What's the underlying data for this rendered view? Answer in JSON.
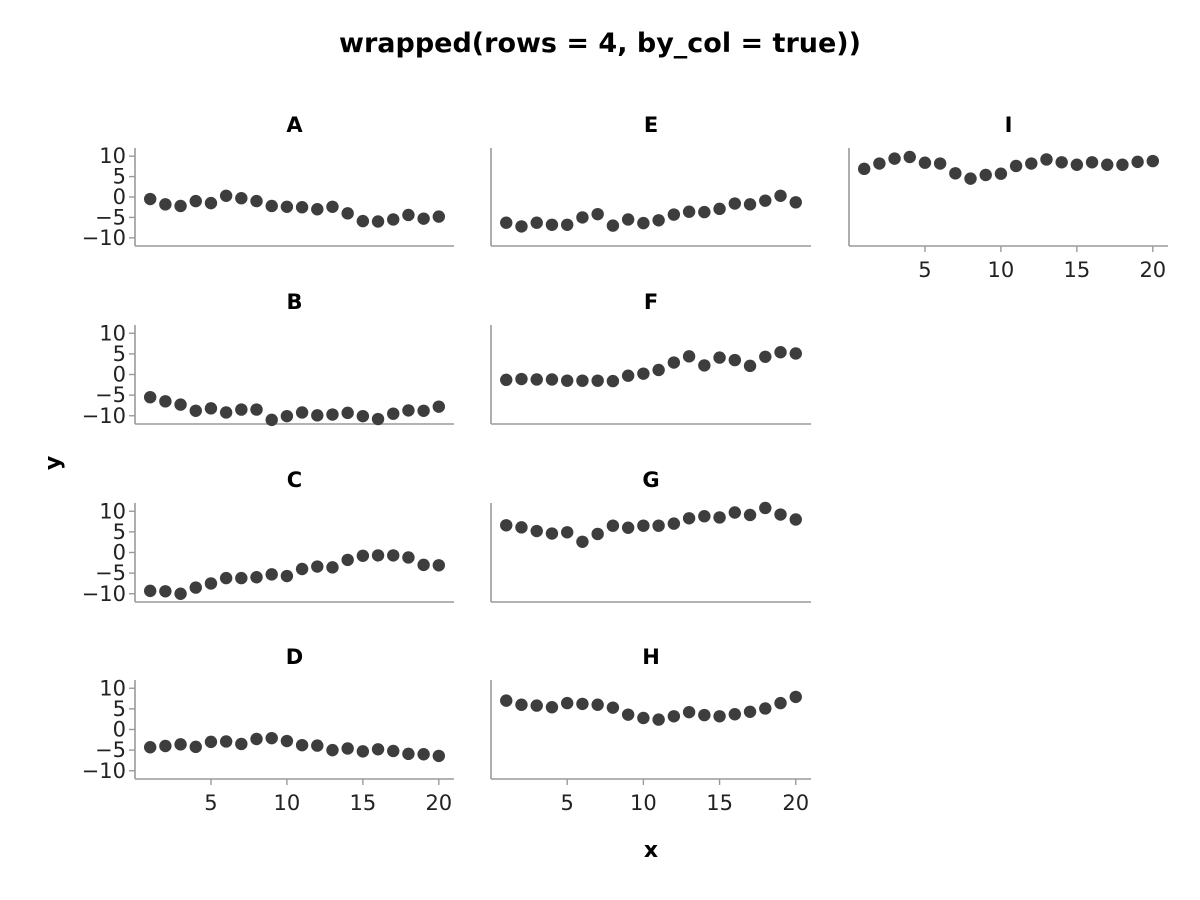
{
  "chart_data": {
    "type": "scatter",
    "title": "wrapped(rows = 4, by_col = true))",
    "xlabel": "x",
    "ylabel": "y",
    "xlim": [
      0,
      21
    ],
    "ylim": [
      -12,
      12
    ],
    "xticks": [
      "5",
      "10",
      "15",
      "20"
    ],
    "yticks": [
      "10",
      "5",
      "0",
      "−5",
      "−10"
    ],
    "marker_color": "#3d3d3d",
    "axis_color": "#9a9a9a",
    "x": [
      1,
      2,
      3,
      4,
      5,
      6,
      7,
      8,
      9,
      10,
      11,
      12,
      13,
      14,
      15,
      16,
      17,
      18,
      19,
      20
    ],
    "panels": [
      {
        "name": "A",
        "values": [
          -0.5,
          -1.8,
          -2.2,
          -1,
          -1.5,
          0.3,
          -0.3,
          -1,
          -2.2,
          -2.4,
          -2.5,
          -3,
          -2.4,
          -4,
          -5.9,
          -6,
          -5.5,
          -4.4,
          -5.3,
          -4.8
        ]
      },
      {
        "name": "B",
        "values": [
          -5.5,
          -6.5,
          -7.3,
          -8.8,
          -8.2,
          -9.2,
          -8.5,
          -8.5,
          -11,
          -10.1,
          -9.2,
          -9.9,
          -9.7,
          -9.3,
          -10.1,
          -10.8,
          -9.5,
          -8.7,
          -8.8,
          -7.8
        ]
      },
      {
        "name": "C",
        "values": [
          -9.3,
          -9.4,
          -10,
          -8.5,
          -7.5,
          -6.2,
          -6.2,
          -6,
          -5.3,
          -5.7,
          -4,
          -3.4,
          -3.6,
          -1.8,
          -0.8,
          -0.7,
          -0.7,
          -1.2,
          -3,
          -3.1
        ]
      },
      {
        "name": "D",
        "values": [
          -4.3,
          -4,
          -3.6,
          -4.2,
          -3,
          -2.9,
          -3.5,
          -2.3,
          -2.1,
          -2.8,
          -3.8,
          -3.9,
          -5,
          -4.6,
          -5.3,
          -4.8,
          -5.2,
          -5.9,
          -6,
          -6.4
        ]
      },
      {
        "name": "E",
        "values": [
          -6.3,
          -7.2,
          -6.3,
          -6.8,
          -6.8,
          -5,
          -4.2,
          -7,
          -5.5,
          -6.4,
          -5.7,
          -4.3,
          -3.6,
          -3.7,
          -2.9,
          -1.6,
          -1.8,
          -0.9,
          0.3,
          -1.3
        ]
      },
      {
        "name": "F",
        "values": [
          -1.3,
          -1.1,
          -1.2,
          -1.2,
          -1.5,
          -1.5,
          -1.5,
          -1.6,
          -0.3,
          0.2,
          1.1,
          2.9,
          4.4,
          2.2,
          4.1,
          3.5,
          2.1,
          4.3,
          5.4,
          5.1
        ]
      },
      {
        "name": "G",
        "values": [
          6.6,
          6.1,
          5.2,
          4.6,
          4.9,
          2.6,
          4.5,
          6.5,
          6,
          6.5,
          6.5,
          7,
          8.3,
          8.8,
          8.5,
          9.7,
          9.1,
          10.8,
          9.2,
          8
        ]
      },
      {
        "name": "H",
        "values": [
          7,
          6,
          5.8,
          5.4,
          6.4,
          6.2,
          6,
          5.3,
          3.6,
          2.8,
          2.4,
          3.2,
          4.2,
          3.5,
          3.2,
          3.7,
          4.3,
          5.1,
          6.4,
          7.9
        ]
      },
      {
        "name": "I",
        "values": [
          6.9,
          8.2,
          9.4,
          9.8,
          8.4,
          8.2,
          5.8,
          4.5,
          5.4,
          5.7,
          7.6,
          8.2,
          9.2,
          8.5,
          7.9,
          8.5,
          7.9,
          7.9,
          8.6,
          8.8
        ]
      }
    ]
  }
}
